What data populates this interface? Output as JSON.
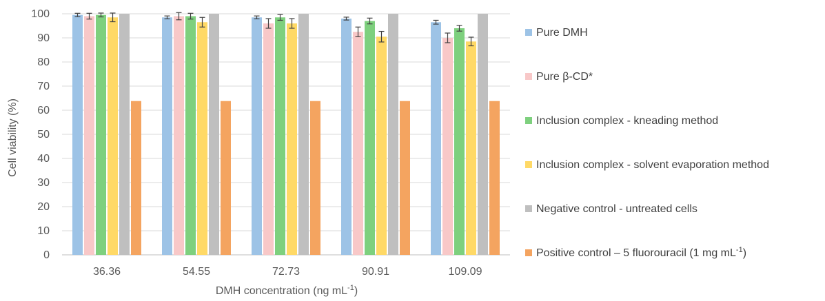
{
  "chart_data": {
    "type": "bar",
    "xlabel": "DMH concentration (ng mL",
    "xlabel_sup": "-1",
    "xlabel_end": ")",
    "ylabel": "Cell viability (%)",
    "ylim": [
      0,
      100
    ],
    "yticks": [
      0,
      10,
      20,
      30,
      40,
      50,
      60,
      70,
      80,
      90,
      100
    ],
    "grid": true,
    "legend_position": "right",
    "categories": [
      "36.36",
      "54.55",
      "72.73",
      "90.91",
      "109.09"
    ],
    "series": [
      {
        "name": "Pure DMH",
        "color": "#9dc3e6",
        "values": [
          99.5,
          98.5,
          98.5,
          98.0,
          96.5
        ],
        "errors": [
          0.7,
          0.6,
          0.6,
          0.6,
          0.8
        ]
      },
      {
        "name": "Pure β-CD*",
        "color": "#f8c8c8",
        "values": [
          99.0,
          99.0,
          96.0,
          92.5,
          90.0
        ],
        "errors": [
          1.2,
          1.5,
          2.0,
          2.0,
          2.0
        ]
      },
      {
        "name": "Inclusion complex - kneading method",
        "color": "#7ed07e",
        "values": [
          99.5,
          99.0,
          98.5,
          97.0,
          94.0
        ],
        "errors": [
          0.8,
          1.2,
          1.2,
          1.2,
          1.2
        ]
      },
      {
        "name": "Inclusion complex - solvent evaporation method",
        "color": "#ffd966",
        "values": [
          98.5,
          96.5,
          96.0,
          90.5,
          88.5
        ],
        "errors": [
          1.8,
          2.0,
          2.0,
          2.2,
          1.8
        ]
      },
      {
        "name": "Negative control - untreated cells",
        "color": "#bfbfbf",
        "values": [
          100,
          100,
          100,
          100,
          100
        ],
        "errors": [
          0,
          0,
          0,
          0,
          0
        ]
      },
      {
        "name": "Positive control – 5 fluorouracil (1 mg mL",
        "name_sup": "-1",
        "name_end": ")",
        "color": "#f4a460",
        "values": [
          63.8,
          63.8,
          63.8,
          63.8,
          63.8
        ],
        "errors": [
          0,
          0,
          0,
          0,
          0
        ]
      }
    ]
  }
}
